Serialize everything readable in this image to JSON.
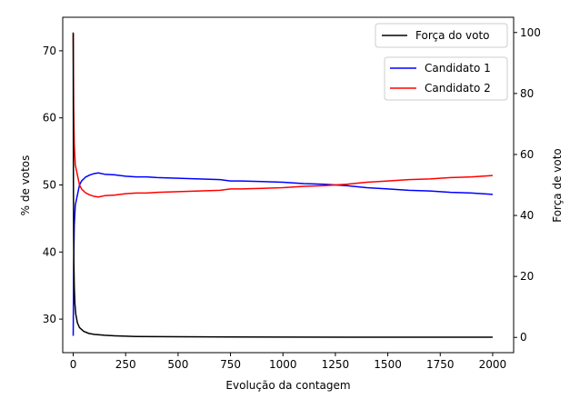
{
  "chart_data": {
    "type": "line",
    "title": "",
    "xlabel": "Evolução da contagem",
    "ylabel_left": "% de votos",
    "ylabel_right": "Força de voto",
    "xlim": [
      -50,
      2100
    ],
    "ylim_left": [
      25,
      75
    ],
    "ylim_right": [
      -5,
      105
    ],
    "x_ticks": [
      0,
      250,
      500,
      750,
      1000,
      1250,
      1500,
      1750,
      2000
    ],
    "y_ticks_left": [
      30,
      40,
      50,
      60,
      70
    ],
    "y_ticks_right": [
      0,
      20,
      40,
      60,
      80,
      100
    ],
    "series": [
      {
        "name": "Candidato 1",
        "axis": "left",
        "color": "#0000ff",
        "x": [
          0,
          2,
          5,
          10,
          20,
          30,
          40,
          60,
          80,
          100,
          120,
          150,
          200,
          250,
          300,
          350,
          400,
          500,
          600,
          700,
          750,
          800,
          900,
          1000,
          1100,
          1200,
          1250,
          1300,
          1400,
          1500,
          1600,
          1700,
          1800,
          1900,
          2000
        ],
        "values": [
          27.5,
          38,
          44,
          47,
          48.5,
          50,
          50.6,
          51.2,
          51.5,
          51.7,
          51.8,
          51.6,
          51.5,
          51.3,
          51.2,
          51.2,
          51.1,
          51,
          50.9,
          50.8,
          50.6,
          50.6,
          50.5,
          50.4,
          50.2,
          50.1,
          50,
          49.9,
          49.6,
          49.4,
          49.2,
          49.1,
          48.9,
          48.8,
          48.6
        ]
      },
      {
        "name": "Candidato 2",
        "axis": "left",
        "color": "#ff0000",
        "x": [
          0,
          2,
          5,
          10,
          20,
          30,
          40,
          60,
          80,
          100,
          120,
          150,
          200,
          250,
          300,
          350,
          400,
          500,
          600,
          700,
          750,
          800,
          900,
          1000,
          1100,
          1200,
          1250,
          1300,
          1400,
          1500,
          1600,
          1700,
          1800,
          1900,
          2000
        ],
        "values": [
          72.5,
          62,
          56,
          53,
          51.5,
          50,
          49.4,
          48.8,
          48.5,
          48.3,
          48.2,
          48.4,
          48.5,
          48.7,
          48.8,
          48.8,
          48.9,
          49,
          49.1,
          49.2,
          49.4,
          49.4,
          49.5,
          49.6,
          49.8,
          49.9,
          50,
          50.1,
          50.4,
          50.6,
          50.8,
          50.9,
          51.1,
          51.2,
          51.4
        ]
      },
      {
        "name": "Força do voto",
        "axis": "right",
        "color": "#000000",
        "x": [
          0,
          1,
          2,
          3,
          5,
          8,
          12,
          20,
          30,
          50,
          75,
          100,
          150,
          200,
          300,
          500,
          750,
          1000,
          1500,
          2000
        ],
        "values": [
          100,
          50,
          33.3,
          25,
          16.7,
          11.1,
          7.7,
          4.8,
          3.2,
          2,
          1.3,
          1,
          0.7,
          0.5,
          0.3,
          0.2,
          0.13,
          0.1,
          0.07,
          0.05
        ]
      }
    ],
    "legend_right_axis": [
      "Força do voto"
    ],
    "legend_left_axis": [
      "Candidato 1",
      "Candidato 2"
    ]
  }
}
